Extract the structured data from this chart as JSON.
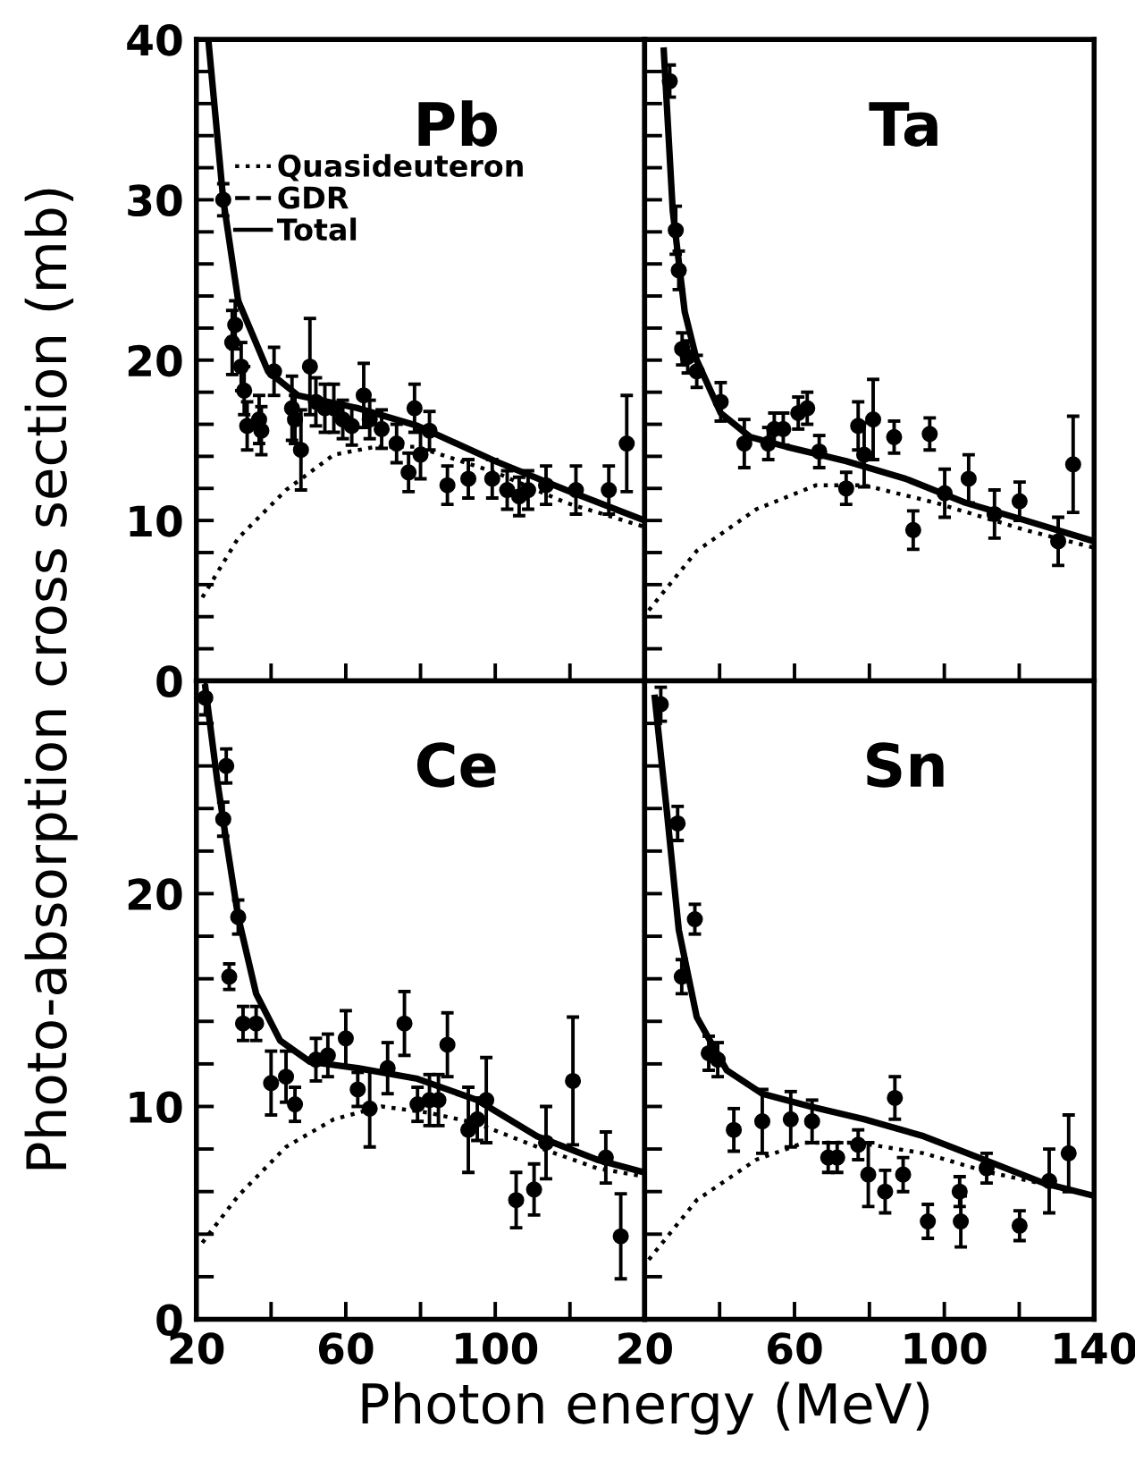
{
  "chart_data": [
    {
      "type": "line",
      "title": "Pb",
      "ylabel": "Photo-absorption cross section (mb)",
      "xlim": [
        20,
        140
      ],
      "ylim": [
        0,
        40
      ],
      "xticks": [
        20,
        {
          "value": 40,
          "label": null
        },
        60,
        {
          "value": 80,
          "label": null
        },
        100,
        {
          "value": 120,
          "label": null
        },
        140
      ],
      "yticks": [
        0,
        {
          "value": 2,
          "label": null
        },
        {
          "value": 4,
          "label": null
        },
        {
          "value": 6,
          "label": null
        },
        {
          "value": 8,
          "label": null
        },
        10,
        {
          "value": 12,
          "label": null
        },
        {
          "value": 14,
          "label": null
        },
        {
          "value": 16,
          "label": null
        },
        {
          "value": 18,
          "label": null
        },
        20,
        {
          "value": 22,
          "label": null
        },
        {
          "value": 24,
          "label": null
        },
        {
          "value": 26,
          "label": null
        },
        {
          "value": 28,
          "label": null
        },
        30,
        {
          "value": 32,
          "label": null
        },
        {
          "value": 34,
          "label": null
        },
        {
          "value": 36,
          "label": null
        },
        {
          "value": 38,
          "label": null
        },
        40
      ],
      "tick_labels": "y",
      "legend": "top left",
      "annotations": [
        "GDR"
      ],
      "series": [
        {
          "name": "Quasideuteron",
          "type": "line",
          "line_style": "dotted",
          "color": "#000000",
          "x": [
            21.6,
            31.2,
            44,
            56.8,
            68,
            79,
            100,
            119,
            140
          ],
          "values": [
            5.2,
            8.9,
            11.9,
            14.1,
            14.6,
            14.6,
            13.0,
            11.1,
            9.6
          ]
        },
        {
          "name": "Total",
          "type": "line",
          "line_style": "solid",
          "color": "#000000",
          "x": [
            23.2,
            27.2,
            31.2,
            39.2,
            47.2,
            63.2,
            79.2,
            100,
            119,
            140
          ],
          "values": [
            40,
            30,
            23.7,
            19.3,
            17.8,
            17.0,
            15.9,
            13.7,
            11.9,
            10.0
          ]
        },
        {
          "type": "scatter",
          "marker": "circle",
          "color": "#000000",
          "x": [
            27.2,
            29.6,
            30.4,
            32,
            32.8,
            33.6,
            36.8,
            37.4,
            40.8,
            45.6,
            46.4,
            48,
            50.4,
            52,
            54.4,
            56.8,
            59.2,
            61.6,
            64.8,
            66.4,
            69.6,
            73.6,
            76.8,
            78.4,
            80,
            82.4,
            87.2,
            92.8,
            99.2,
            103.2,
            106.4,
            108.8,
            113.6,
            121.6,
            130.4,
            135.2
          ],
          "values": [
            30.0,
            21.1,
            22.2,
            19.6,
            18.1,
            15.9,
            16.3,
            15.6,
            19.3,
            17.0,
            16.3,
            14.4,
            19.6,
            17.4,
            17.0,
            17.0,
            16.3,
            15.9,
            17.8,
            16.3,
            15.7,
            14.8,
            13.0,
            17.0,
            14.1,
            15.6,
            12.2,
            12.6,
            12.6,
            11.9,
            11.5,
            11.9,
            12.2,
            11.9,
            11.9,
            14.8
          ],
          "errors": [
            1,
            2,
            1.5,
            1.5,
            1.5,
            1.5,
            1.5,
            1.5,
            1.5,
            2,
            1.5,
            2.5,
            3,
            1.5,
            1.5,
            1.5,
            1.2,
            1.2,
            2,
            1.2,
            1.2,
            1.2,
            1.2,
            1.5,
            1.5,
            1.2,
            1.2,
            1.2,
            1.2,
            1.2,
            1.2,
            1.2,
            1.2,
            1.5,
            1.5,
            3
          ]
        }
      ]
    },
    {
      "type": "line",
      "title": "Ta",
      "xlim": [
        20,
        140
      ],
      "ylim": [
        0,
        40
      ],
      "xticks": [
        20,
        {
          "value": 40,
          "label": null
        },
        60,
        {
          "value": 80,
          "label": null
        },
        100,
        {
          "value": 120,
          "label": null
        },
        140
      ],
      "yticks": [
        0,
        {
          "value": 2,
          "label": null
        },
        {
          "value": 4,
          "label": null
        },
        {
          "value": 6,
          "label": null
        },
        {
          "value": 8,
          "label": null
        },
        10,
        {
          "value": 12,
          "label": null
        },
        {
          "value": 14,
          "label": null
        },
        {
          "value": 16,
          "label": null
        },
        {
          "value": 18,
          "label": null
        },
        20,
        {
          "value": 22,
          "label": null
        },
        {
          "value": 24,
          "label": null
        },
        {
          "value": 26,
          "label": null
        },
        {
          "value": 28,
          "label": null
        },
        30,
        {
          "value": 32,
          "label": null
        },
        {
          "value": 34,
          "label": null
        },
        {
          "value": 36,
          "label": null
        },
        {
          "value": 38,
          "label": null
        },
        40
      ],
      "tick_labels": false,
      "series": [
        {
          "type": "line",
          "line_style": "dotted",
          "color": "#000000",
          "x": [
            21.1,
            33.9,
            49.8,
            65.8,
            78.6,
            97.7,
            121.7,
            140
          ],
          "values": [
            4.4,
            8.1,
            10.7,
            12.2,
            12.2,
            11.1,
            9.4,
            8.3
          ]
        },
        {
          "type": "line",
          "line_style": "solid",
          "color": "#000000",
          "x": [
            25.1,
            27.5,
            30.7,
            33.9,
            40.3,
            48.2,
            57.8,
            73.8,
            89.7,
            105.7,
            121.7,
            140
          ],
          "values": [
            39.3,
            29.3,
            23,
            20,
            16.7,
            15.2,
            14.6,
            13.7,
            12.6,
            11.1,
            10.0,
            8.7
          ]
        },
        {
          "type": "scatter",
          "marker": "circle",
          "color": "#000000",
          "x": [
            26.7,
            28.3,
            29.1,
            30,
            31.5,
            33.9,
            40.3,
            46.6,
            53,
            54.6,
            57,
            61,
            63.4,
            66.6,
            73.8,
            77,
            78.6,
            81,
            86.6,
            91.7,
            96.1,
            100.1,
            106.5,
            113.4,
            120.1,
            130.4,
            134.4
          ],
          "values": [
            37.4,
            28.1,
            25.6,
            20.7,
            20.2,
            19.3,
            17.4,
            14.8,
            14.8,
            15.7,
            15.7,
            16.7,
            17.0,
            14.3,
            12.0,
            15.9,
            14.1,
            16.3,
            15.2,
            9.4,
            15.4,
            11.7,
            12.6,
            10.4,
            11.2,
            8.7,
            13.5
          ],
          "errors": [
            1,
            1.5,
            1.2,
            1,
            1,
            1,
            1.2,
            1.5,
            1,
            1,
            1,
            1,
            1,
            1,
            1,
            1.5,
            2,
            2.5,
            1,
            1.2,
            1,
            1.5,
            1.5,
            1.5,
            1.2,
            1.5,
            3
          ]
        }
      ]
    },
    {
      "type": "line",
      "title": "Ce",
      "xlabel": "Photon energy (MeV)",
      "xlim": [
        20,
        140
      ],
      "ylim": [
        0,
        30
      ],
      "xticks": [
        20,
        {
          "value": 40,
          "label": null
        },
        60,
        {
          "value": 80,
          "label": null
        },
        100,
        {
          "value": 120,
          "label": null
        },
        {
          "value": 140,
          "label": null
        }
      ],
      "yticks": [
        0,
        {
          "value": 2,
          "label": null
        },
        {
          "value": 4,
          "label": null
        },
        {
          "value": 6,
          "label": null
        },
        {
          "value": 8,
          "label": null
        },
        10,
        {
          "value": 12,
          "label": null
        },
        {
          "value": 14,
          "label": null
        },
        {
          "value": 16,
          "label": null
        },
        {
          "value": 18,
          "label": null
        },
        20,
        {
          "value": 22,
          "label": null
        },
        {
          "value": 24,
          "label": null
        },
        {
          "value": 26,
          "label": null
        },
        {
          "value": 28,
          "label": null
        },
        {
          "value": 30,
          "label": null
        }
      ],
      "series": [
        {
          "type": "line",
          "line_style": "dotted",
          "color": "#000000",
          "x": [
            21.6,
            31.2,
            44,
            56.8,
            69.6,
            82.4,
            95.2,
            111.2,
            127.2,
            140
          ],
          "values": [
            3.6,
            5.8,
            8.1,
            9.4,
            10.0,
            9.7,
            9.2,
            8.1,
            7.1,
            6.7
          ]
        },
        {
          "type": "line",
          "line_style": "solid",
          "color": "#000000",
          "x": [
            22.4,
            25.6,
            28,
            31.2,
            36,
            42.4,
            50.4,
            63.2,
            79.2,
            95.2,
            111.2,
            127.2,
            140
          ],
          "values": [
            29.7,
            25.3,
            22.5,
            18.9,
            15.3,
            13.1,
            12.1,
            11.8,
            11.3,
            10.3,
            8.6,
            7.5,
            6.9
          ]
        },
        {
          "type": "scatter",
          "marker": "circle",
          "color": "#000000",
          "x": [
            22.4,
            27.2,
            28,
            28.8,
            31.2,
            32.5,
            36,
            40,
            44,
            46.4,
            52,
            55.2,
            60,
            63.2,
            66.4,
            71.2,
            75.7,
            79.2,
            82.4,
            84.8,
            87.2,
            92.8,
            95.2,
            97.6,
            105.6,
            110.4,
            113.6,
            120.8,
            129.6,
            133.6
          ],
          "values": [
            29.2,
            23.5,
            26,
            16.1,
            18.9,
            13.9,
            13.9,
            11.1,
            11.4,
            10.1,
            12.2,
            12.4,
            13.2,
            10.8,
            9.9,
            11.8,
            13.9,
            10.1,
            10.3,
            10.3,
            12.9,
            8.9,
            9.4,
            10.3,
            5.6,
            6.1,
            8.3,
            11.2,
            7.6,
            3.9
          ],
          "errors": [
            0.8,
            0.8,
            0.8,
            0.6,
            0.8,
            0.8,
            0.8,
            1.5,
            1.2,
            0.8,
            1,
            1,
            1.3,
            0.8,
            1.8,
            1.2,
            1.5,
            0.8,
            1.2,
            1.2,
            1.5,
            2,
            1,
            2,
            1.3,
            1.2,
            1.7,
            3,
            1.2,
            2
          ]
        }
      ]
    },
    {
      "type": "line",
      "title": "Sn",
      "xlim": [
        20,
        140
      ],
      "ylim": [
        0,
        30
      ],
      "xticks": [
        20,
        {
          "value": 40,
          "label": null
        },
        60,
        {
          "value": 80,
          "label": null
        },
        100,
        {
          "value": 120,
          "label": null
        },
        140
      ],
      "yticks": [
        0,
        {
          "value": 2,
          "label": null
        },
        {
          "value": 4,
          "label": null
        },
        {
          "value": 6,
          "label": null
        },
        {
          "value": 8,
          "label": null
        },
        10,
        {
          "value": 12,
          "label": null
        },
        {
          "value": 14,
          "label": null
        },
        {
          "value": 16,
          "label": null
        },
        {
          "value": 18,
          "label": null
        },
        20,
        {
          "value": 22,
          "label": null
        },
        {
          "value": 24,
          "label": null
        },
        {
          "value": 26,
          "label": null
        },
        {
          "value": 28,
          "label": null
        },
        {
          "value": 30,
          "label": null
        }
      ],
      "tick_labels": "x",
      "series": [
        {
          "type": "line",
          "line_style": "dotted",
          "color": "#000000",
          "x": [
            21.1,
            33.9,
            49.8,
            62.6,
            77,
            94.5,
            112.1,
            128,
            140
          ],
          "values": [
            2.8,
            5.6,
            7.5,
            8.3,
            8.3,
            7.8,
            6.9,
            6.3,
            5.8
          ]
        },
        {
          "type": "line",
          "line_style": "solid",
          "color": "#000000",
          "x": [
            22.7,
            25.9,
            29.1,
            33.9,
            41.9,
            51.4,
            64.2,
            78.6,
            94.5,
            110.5,
            126.5,
            140
          ],
          "values": [
            29.2,
            23.9,
            18.3,
            14.2,
            11.7,
            10.6,
            10.0,
            9.4,
            8.6,
            7.5,
            6.4,
            5.8
          ]
        },
        {
          "type": "scatter",
          "marker": "circle",
          "color": "#000000",
          "x": [
            24.3,
            28.8,
            29.9,
            33.4,
            37.1,
            39.5,
            43.8,
            51.4,
            59,
            64.7,
            69,
            71.4,
            77,
            79.7,
            84.2,
            86.8,
            89,
            95.6,
            104.1,
            104.4,
            111.3,
            120.1,
            128,
            133.2
          ],
          "values": [
            28.9,
            23.3,
            16.1,
            18.8,
            12.5,
            12.2,
            8.9,
            9.3,
            9.4,
            9.3,
            7.6,
            7.6,
            8.2,
            6.8,
            6.0,
            10.4,
            6.8,
            4.6,
            6.0,
            4.6,
            7.1,
            4.4,
            6.5,
            7.8
          ],
          "errors": [
            0.8,
            0.8,
            0.8,
            0.7,
            0.8,
            0.8,
            1,
            1.5,
            1.3,
            1,
            0.7,
            0.7,
            0.7,
            1.5,
            1,
            1,
            0.8,
            0.8,
            0.7,
            1.2,
            0.7,
            0.7,
            1.5,
            1.8
          ]
        }
      ]
    }
  ]
}
